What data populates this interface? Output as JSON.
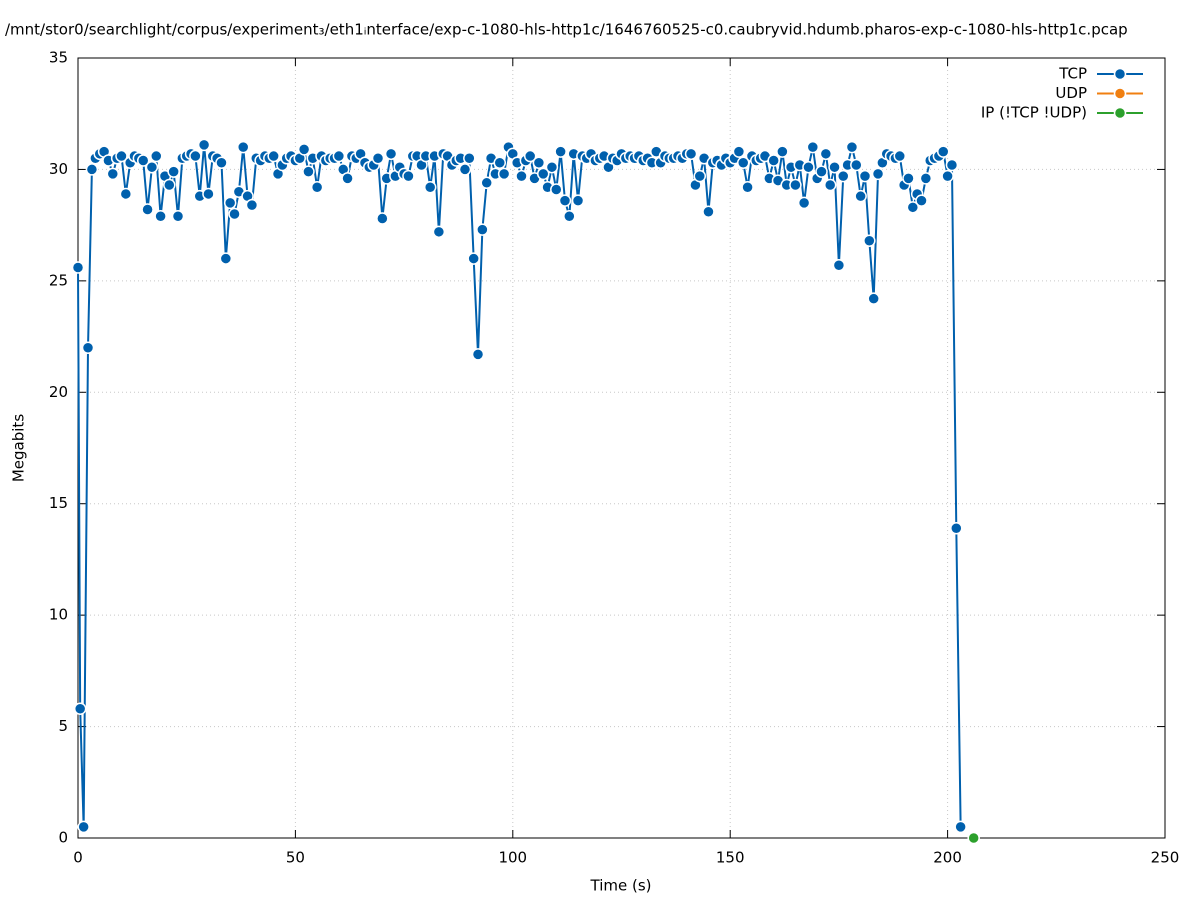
{
  "chart_data": {
    "type": "line",
    "title": "/mnt/stor0/searchlight/corpus/experiment₃/eth1ᵢnterface/exp-c-1080-hls-http1c/1646760525-c0.caubryvid.hdumb.pharos-exp-c-1080-hls-http1c.pcap",
    "xlabel": "Time (s)",
    "ylabel": "Megabits",
    "xlim": [
      0,
      250
    ],
    "xticks": [
      0,
      50,
      100,
      150,
      200,
      250
    ],
    "ylim": [
      0,
      35
    ],
    "yticks": [
      0,
      5,
      10,
      15,
      20,
      25,
      30,
      35
    ],
    "grid": true,
    "legend": "top-right",
    "series": [
      {
        "name": "TCP",
        "color": "#0060ad",
        "x": [
          0,
          0.5,
          1.3,
          2.3,
          3.2,
          4,
          5,
          6,
          7,
          8,
          9,
          10,
          11,
          12,
          13,
          14,
          15,
          16,
          17,
          18,
          19,
          20,
          21,
          22,
          23,
          24,
          25,
          26,
          27,
          28,
          29,
          30,
          31,
          32,
          33,
          34,
          35,
          36,
          37,
          38,
          39,
          40,
          41,
          42,
          43,
          44,
          45,
          46,
          47,
          48,
          49,
          50,
          51,
          52,
          53,
          54,
          55,
          56,
          57,
          58,
          59,
          60,
          61,
          62,
          63,
          64,
          65,
          66,
          67,
          68,
          69,
          70,
          71,
          72,
          73,
          74,
          75,
          76,
          77,
          78,
          79,
          80,
          81,
          82,
          83,
          84,
          85,
          86,
          87,
          88,
          89,
          90,
          91,
          92,
          93,
          94,
          95,
          96,
          97,
          98,
          99,
          100,
          101,
          102,
          103,
          104,
          105,
          106,
          107,
          108,
          109,
          110,
          111,
          112,
          113,
          114,
          115,
          116,
          117,
          118,
          119,
          120,
          121,
          122,
          123,
          124,
          125,
          126,
          127,
          128,
          129,
          130,
          131,
          132,
          133,
          134,
          135,
          136,
          137,
          138,
          139,
          140,
          141,
          142,
          143,
          144,
          145,
          146,
          147,
          148,
          149,
          150,
          151,
          152,
          153,
          154,
          155,
          156,
          157,
          158,
          159,
          160,
          161,
          162,
          163,
          164,
          165,
          166,
          167,
          168,
          169,
          170,
          171,
          172,
          173,
          174,
          175,
          176,
          177,
          178,
          179,
          180,
          181,
          182,
          183,
          184,
          185,
          186,
          187,
          188,
          189,
          190,
          191,
          192,
          193,
          194,
          195,
          196,
          197,
          198,
          199,
          200,
          201,
          202,
          203
        ],
        "values": [
          25.6,
          5.8,
          0.5,
          22.0,
          30.0,
          30.5,
          30.7,
          30.8,
          30.4,
          29.8,
          30.5,
          30.6,
          28.9,
          30.3,
          30.6,
          30.5,
          30.4,
          28.2,
          30.1,
          30.6,
          27.9,
          29.7,
          29.3,
          29.9,
          27.9,
          30.5,
          30.6,
          30.7,
          30.6,
          28.8,
          31.1,
          28.9,
          30.6,
          30.5,
          30.3,
          26.0,
          28.5,
          28.0,
          29.0,
          31.0,
          28.8,
          28.4,
          30.5,
          30.4,
          30.6,
          30.5,
          30.6,
          29.8,
          30.2,
          30.5,
          30.6,
          30.4,
          30.5,
          30.9,
          29.9,
          30.5,
          29.2,
          30.6,
          30.4,
          30.5,
          30.5,
          30.6,
          30.0,
          29.6,
          30.6,
          30.5,
          30.7,
          30.3,
          30.1,
          30.2,
          30.5,
          27.8,
          29.6,
          30.7,
          29.7,
          30.1,
          29.8,
          29.7,
          30.6,
          30.6,
          30.2,
          30.6,
          29.2,
          30.6,
          27.2,
          30.7,
          30.6,
          30.2,
          30.4,
          30.5,
          30.0,
          30.5,
          26.0,
          21.7,
          27.3,
          29.4,
          30.5,
          29.8,
          30.3,
          29.8,
          31.0,
          30.7,
          30.3,
          29.7,
          30.4,
          30.6,
          29.6,
          30.3,
          29.8,
          29.2,
          30.1,
          29.1,
          30.8,
          28.6,
          27.9,
          30.7,
          28.6,
          30.6,
          30.5,
          30.7,
          30.4,
          30.5,
          30.6,
          30.1,
          30.5,
          30.4,
          30.7,
          30.5,
          30.6,
          30.5,
          30.6,
          30.4,
          30.5,
          30.3,
          30.8,
          30.3,
          30.6,
          30.5,
          30.5,
          30.6,
          30.5,
          30.7,
          30.7,
          29.3,
          29.7,
          30.5,
          28.1,
          30.3,
          30.4,
          30.2,
          30.5,
          30.3,
          30.5,
          30.8,
          30.3,
          29.2,
          30.6,
          30.4,
          30.5,
          30.6,
          29.6,
          30.4,
          29.5,
          30.8,
          29.3,
          30.1,
          29.3,
          30.2,
          28.5,
          30.1,
          31.0,
          29.6,
          29.9,
          30.7,
          29.3,
          30.1,
          25.7,
          29.7,
          30.2,
          31.0,
          30.2,
          28.8,
          29.7,
          26.8,
          24.2,
          29.8,
          30.3,
          30.7,
          30.6,
          30.5,
          30.6,
          29.3,
          29.6,
          28.3,
          28.9,
          28.6,
          29.6,
          30.4,
          30.5,
          30.6,
          30.8,
          29.7,
          30.2,
          13.9,
          0.5
        ]
      },
      {
        "name": "UDP",
        "color": "#f07f10",
        "x": [],
        "values": []
      },
      {
        "name": "IP (!TCP  !UDP)",
        "color": "#2ca02c",
        "x": [
          206
        ],
        "values": [
          0
        ]
      }
    ]
  }
}
